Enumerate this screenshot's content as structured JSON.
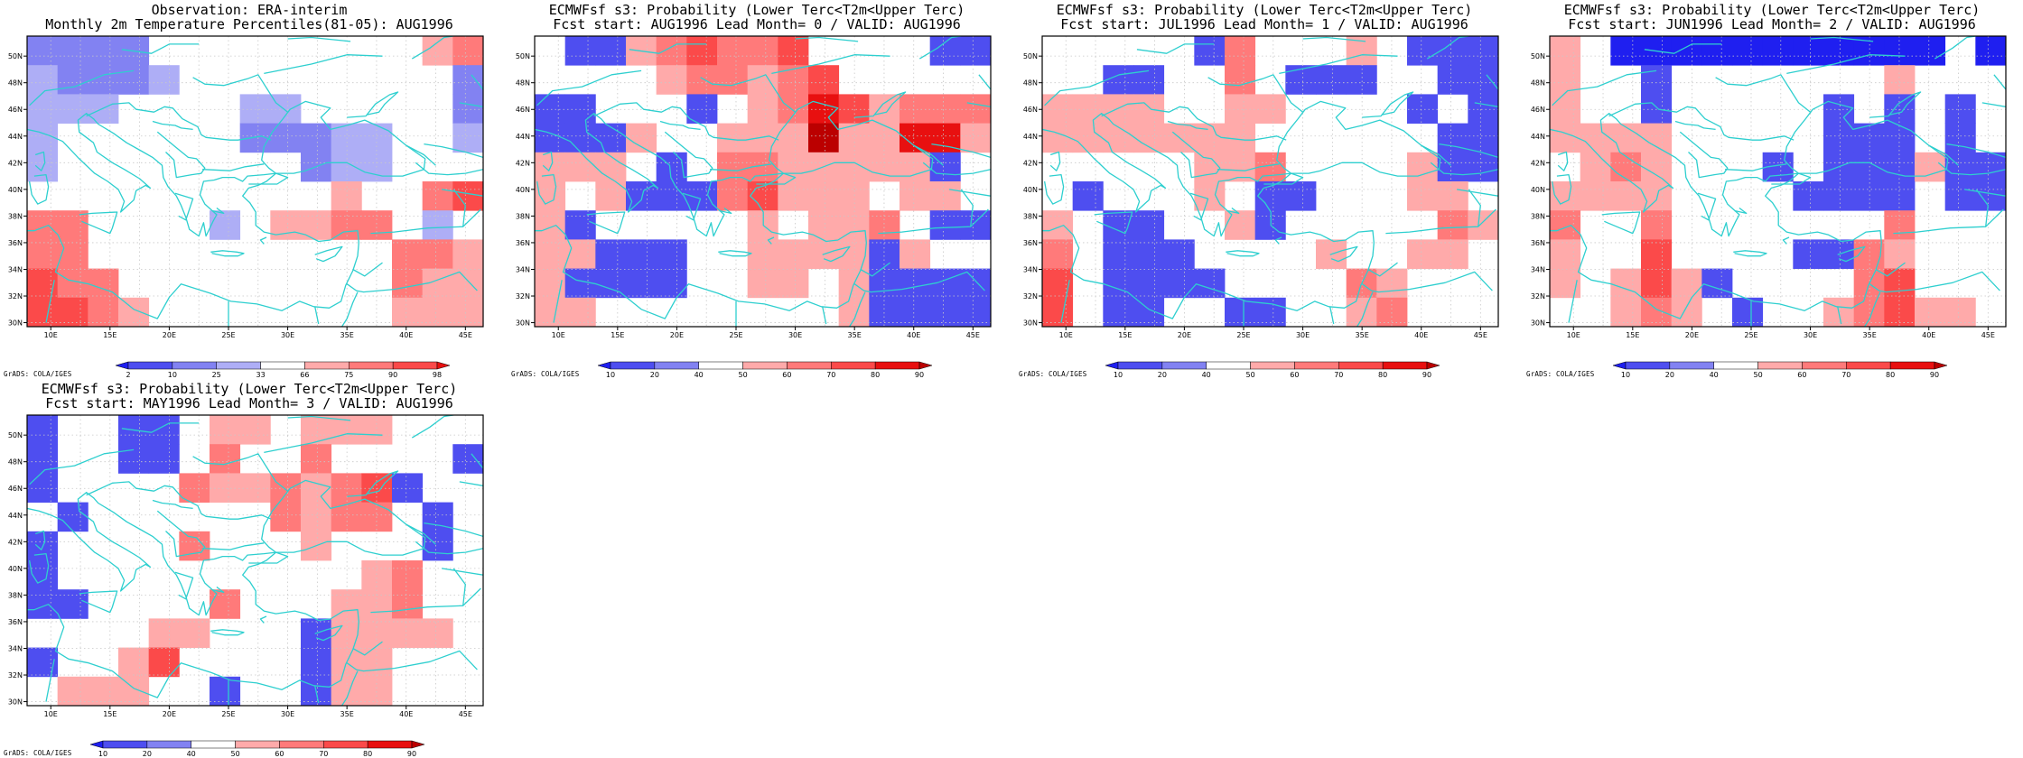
{
  "footer_credit": "GrADS: COLA/IGES",
  "coastline_color": "#2ecfcf",
  "chart_data": [
    {
      "id": "obs",
      "type": "heatmap",
      "title_lines": [
        "Observation: ERA-interim",
        "Monthly 2m Temperature Percentiles(81-05): AUG1996"
      ],
      "x_ticks": [
        "10E",
        "15E",
        "20E",
        "25E",
        "30E",
        "35E",
        "40E",
        "45E"
      ],
      "y_ticks": [
        "30N",
        "32N",
        "34N",
        "36N",
        "38N",
        "40N",
        "42N",
        "44N",
        "46N",
        "48N",
        "50N"
      ],
      "colorbar": {
        "labels": [
          "2",
          "10",
          "25",
          "33",
          "66",
          "75",
          "90",
          "98"
        ],
        "colors": [
          "#1f1ff0",
          "#4e4ef0",
          "#8282f2",
          "#aeaef6",
          "#ffffff",
          "#ffaaaa",
          "#ff7a7a",
          "#fb4a4a",
          "#e81010"
        ]
      },
      "grid_bins": [
        [
          2,
          2,
          2,
          2,
          4,
          4,
          4,
          4,
          4,
          4,
          4,
          4,
          4,
          5,
          6
        ],
        [
          3,
          2,
          2,
          2,
          3,
          4,
          4,
          4,
          4,
          4,
          4,
          4,
          4,
          4,
          2
        ],
        [
          3,
          3,
          3,
          4,
          4,
          4,
          4,
          3,
          3,
          4,
          4,
          4,
          4,
          4,
          2
        ],
        [
          3,
          4,
          4,
          4,
          4,
          4,
          4,
          2,
          2,
          2,
          3,
          3,
          4,
          4,
          3
        ],
        [
          3,
          4,
          4,
          4,
          4,
          4,
          4,
          4,
          4,
          2,
          3,
          3,
          4,
          4,
          4
        ],
        [
          4,
          4,
          4,
          4,
          4,
          4,
          4,
          4,
          4,
          4,
          5,
          4,
          4,
          6,
          7
        ],
        [
          6,
          6,
          4,
          4,
          4,
          4,
          3,
          4,
          5,
          5,
          6,
          6,
          4,
          3,
          4
        ],
        [
          6,
          6,
          4,
          4,
          4,
          4,
          4,
          4,
          4,
          4,
          4,
          4,
          6,
          6,
          5
        ],
        [
          7,
          6,
          6,
          4,
          4,
          4,
          4,
          4,
          4,
          4,
          4,
          4,
          6,
          5,
          5
        ],
        [
          7,
          7,
          6,
          5,
          4,
          4,
          4,
          4,
          4,
          4,
          4,
          4,
          5,
          5,
          5
        ]
      ]
    },
    {
      "id": "lead0",
      "type": "heatmap",
      "title_lines": [
        "ECMWFsf s3: Probability (Lower Terc<T2m<Upper Terc)",
        "Fcst start: AUG1996  Lead Month= 0 / VALID: AUG1996"
      ],
      "x_ticks": [
        "10E",
        "15E",
        "20E",
        "25E",
        "30E",
        "35E",
        "40E",
        "45E"
      ],
      "y_ticks": [
        "30N",
        "32N",
        "34N",
        "36N",
        "38N",
        "40N",
        "42N",
        "44N",
        "46N",
        "48N",
        "50N"
      ],
      "colorbar": {
        "labels": [
          "10",
          "20",
          "40",
          "50",
          "60",
          "70",
          "80",
          "90"
        ],
        "colors": [
          "#1f1ff0",
          "#4e4ef0",
          "#8282f2",
          "#ffffff",
          "#ffaaaa",
          "#ff7a7a",
          "#fb4a4a",
          "#e81010",
          "#bb0000"
        ]
      },
      "grid_bins": [
        [
          3,
          1,
          1,
          4,
          5,
          6,
          5,
          5,
          6,
          3,
          3,
          3,
          3,
          1,
          1
        ],
        [
          3,
          3,
          3,
          3,
          4,
          5,
          5,
          4,
          5,
          6,
          3,
          3,
          3,
          3,
          3
        ],
        [
          1,
          1,
          3,
          3,
          3,
          1,
          3,
          4,
          5,
          7,
          6,
          4,
          5,
          5,
          5
        ],
        [
          1,
          1,
          1,
          4,
          3,
          3,
          4,
          4,
          4,
          8,
          4,
          4,
          7,
          7,
          4
        ],
        [
          4,
          4,
          4,
          3,
          1,
          3,
          5,
          5,
          4,
          4,
          4,
          4,
          4,
          1,
          3
        ],
        [
          4,
          3,
          4,
          1,
          1,
          1,
          5,
          6,
          4,
          4,
          4,
          3,
          4,
          4,
          3
        ],
        [
          4,
          1,
          3,
          3,
          3,
          3,
          3,
          4,
          3,
          4,
          4,
          5,
          3,
          1,
          1
        ],
        [
          4,
          4,
          1,
          1,
          1,
          3,
          3,
          4,
          4,
          4,
          4,
          1,
          4,
          3,
          3
        ],
        [
          4,
          1,
          1,
          1,
          1,
          3,
          3,
          4,
          4,
          3,
          4,
          1,
          1,
          1,
          1
        ],
        [
          4,
          4,
          3,
          3,
          3,
          3,
          3,
          3,
          3,
          3,
          4,
          1,
          1,
          1,
          1
        ]
      ]
    },
    {
      "id": "lead1",
      "type": "heatmap",
      "title_lines": [
        "ECMWFsf s3: Probability (Lower Terc<T2m<Upper Terc)",
        "Fcst start: JUL1996  Lead Month= 1 / VALID: AUG1996"
      ],
      "x_ticks": [
        "10E",
        "15E",
        "20E",
        "25E",
        "30E",
        "35E",
        "40E",
        "45E"
      ],
      "y_ticks": [
        "30N",
        "32N",
        "34N",
        "36N",
        "38N",
        "40N",
        "42N",
        "44N",
        "46N",
        "48N",
        "50N"
      ],
      "colorbar": {
        "labels": [
          "10",
          "20",
          "40",
          "50",
          "60",
          "70",
          "80",
          "90"
        ],
        "colors": [
          "#1f1ff0",
          "#4e4ef0",
          "#8282f2",
          "#ffffff",
          "#ffaaaa",
          "#ff7a7a",
          "#fb4a4a",
          "#e81010",
          "#bb0000"
        ]
      },
      "grid_bins": [
        [
          3,
          3,
          3,
          3,
          3,
          1,
          5,
          3,
          3,
          3,
          4,
          3,
          1,
          1,
          1
        ],
        [
          3,
          3,
          1,
          1,
          3,
          3,
          5,
          3,
          1,
          1,
          1,
          3,
          3,
          1,
          1
        ],
        [
          4,
          4,
          4,
          4,
          3,
          3,
          4,
          4,
          3,
          3,
          3,
          3,
          1,
          3,
          1
        ],
        [
          4,
          4,
          4,
          4,
          4,
          4,
          4,
          3,
          3,
          3,
          3,
          3,
          3,
          1,
          1
        ],
        [
          3,
          3,
          3,
          3,
          3,
          4,
          4,
          5,
          3,
          3,
          3,
          3,
          4,
          1,
          1
        ],
        [
          3,
          1,
          3,
          3,
          3,
          4,
          3,
          1,
          1,
          3,
          3,
          3,
          4,
          4,
          3
        ],
        [
          4,
          3,
          1,
          1,
          3,
          3,
          4,
          1,
          3,
          3,
          3,
          3,
          3,
          5,
          4
        ],
        [
          5,
          3,
          1,
          1,
          1,
          3,
          3,
          3,
          3,
          4,
          3,
          3,
          4,
          4,
          3
        ],
        [
          6,
          3,
          1,
          1,
          1,
          1,
          3,
          3,
          3,
          3,
          5,
          4,
          3,
          3,
          3
        ],
        [
          6,
          3,
          1,
          1,
          3,
          3,
          1,
          1,
          3,
          3,
          4,
          5,
          3,
          3,
          3
        ]
      ]
    },
    {
      "id": "lead2",
      "type": "heatmap",
      "title_lines": [
        "ECMWFsf s3: Probability (Lower Terc<T2m<Upper Terc)",
        "Fcst start: JUN1996  Lead Month= 2 / VALID: AUG1996"
      ],
      "x_ticks": [
        "10E",
        "15E",
        "20E",
        "25E",
        "30E",
        "35E",
        "40E",
        "45E"
      ],
      "y_ticks": [
        "30N",
        "32N",
        "34N",
        "36N",
        "38N",
        "40N",
        "42N",
        "44N",
        "46N",
        "48N",
        "50N"
      ],
      "colorbar": {
        "labels": [
          "10",
          "20",
          "40",
          "50",
          "60",
          "70",
          "80",
          "90"
        ],
        "colors": [
          "#1f1ff0",
          "#4e4ef0",
          "#8282f2",
          "#ffffff",
          "#ffaaaa",
          "#ff7a7a",
          "#fb4a4a",
          "#e81010",
          "#bb0000"
        ]
      },
      "grid_bins": [
        [
          4,
          3,
          0,
          0,
          0,
          0,
          0,
          0,
          0,
          0,
          0,
          0,
          0,
          3,
          0
        ],
        [
          4,
          3,
          3,
          1,
          3,
          3,
          3,
          3,
          3,
          3,
          3,
          4,
          3,
          3,
          3
        ],
        [
          4,
          3,
          3,
          1,
          3,
          3,
          3,
          3,
          3,
          1,
          3,
          1,
          3,
          1,
          3
        ],
        [
          4,
          4,
          4,
          4,
          3,
          3,
          3,
          3,
          3,
          1,
          1,
          1,
          3,
          1,
          3
        ],
        [
          3,
          4,
          5,
          4,
          3,
          3,
          3,
          1,
          3,
          1,
          1,
          1,
          4,
          1,
          1
        ],
        [
          4,
          4,
          4,
          4,
          3,
          3,
          3,
          3,
          1,
          1,
          1,
          1,
          3,
          1,
          1
        ],
        [
          5,
          3,
          3,
          5,
          3,
          3,
          3,
          3,
          3,
          3,
          3,
          5,
          3,
          3,
          3
        ],
        [
          4,
          3,
          3,
          6,
          3,
          3,
          3,
          3,
          1,
          1,
          5,
          4,
          3,
          3,
          3
        ],
        [
          4,
          3,
          4,
          6,
          4,
          1,
          3,
          3,
          3,
          3,
          5,
          6,
          3,
          3,
          3
        ],
        [
          3,
          3,
          4,
          5,
          4,
          3,
          1,
          3,
          3,
          4,
          5,
          6,
          4,
          4,
          3
        ]
      ]
    },
    {
      "id": "lead3",
      "type": "heatmap",
      "title_lines": [
        "ECMWFsf s3: Probability (Lower Terc<T2m<Upper Terc)",
        "Fcst start: MAY1996  Lead Month= 3 / VALID: AUG1996"
      ],
      "x_ticks": [
        "10E",
        "15E",
        "20E",
        "25E",
        "30E",
        "35E",
        "40E",
        "45E"
      ],
      "y_ticks": [
        "30N",
        "32N",
        "34N",
        "36N",
        "38N",
        "40N",
        "42N",
        "44N",
        "46N",
        "48N",
        "50N"
      ],
      "colorbar": {
        "labels": [
          "10",
          "20",
          "40",
          "50",
          "60",
          "70",
          "80",
          "90"
        ],
        "colors": [
          "#1f1ff0",
          "#4e4ef0",
          "#8282f2",
          "#ffffff",
          "#ffaaaa",
          "#ff7a7a",
          "#fb4a4a",
          "#e81010",
          "#bb0000"
        ]
      },
      "grid_bins": [
        [
          1,
          3,
          3,
          1,
          1,
          3,
          4,
          4,
          3,
          4,
          4,
          4,
          3,
          3,
          3
        ],
        [
          1,
          3,
          3,
          1,
          1,
          3,
          5,
          3,
          3,
          5,
          3,
          3,
          3,
          3,
          1
        ],
        [
          1,
          3,
          3,
          3,
          3,
          5,
          4,
          4,
          5,
          4,
          5,
          6,
          1,
          3,
          3
        ],
        [
          3,
          1,
          3,
          3,
          3,
          3,
          3,
          3,
          5,
          4,
          5,
          5,
          3,
          1,
          3
        ],
        [
          1,
          3,
          3,
          3,
          3,
          5,
          3,
          3,
          3,
          4,
          3,
          3,
          3,
          1,
          3
        ],
        [
          1,
          3,
          3,
          3,
          3,
          3,
          3,
          3,
          3,
          3,
          3,
          4,
          5,
          3,
          3
        ],
        [
          1,
          1,
          3,
          3,
          3,
          3,
          5,
          3,
          3,
          3,
          4,
          4,
          5,
          3,
          3
        ],
        [
          3,
          3,
          3,
          3,
          4,
          4,
          3,
          3,
          3,
          1,
          4,
          4,
          4,
          4,
          3
        ],
        [
          1,
          3,
          3,
          4,
          6,
          3,
          3,
          3,
          3,
          1,
          4,
          4,
          3,
          3,
          3
        ],
        [
          3,
          4,
          4,
          4,
          3,
          3,
          1,
          3,
          3,
          1,
          4,
          4,
          3,
          3,
          3
        ]
      ]
    }
  ]
}
